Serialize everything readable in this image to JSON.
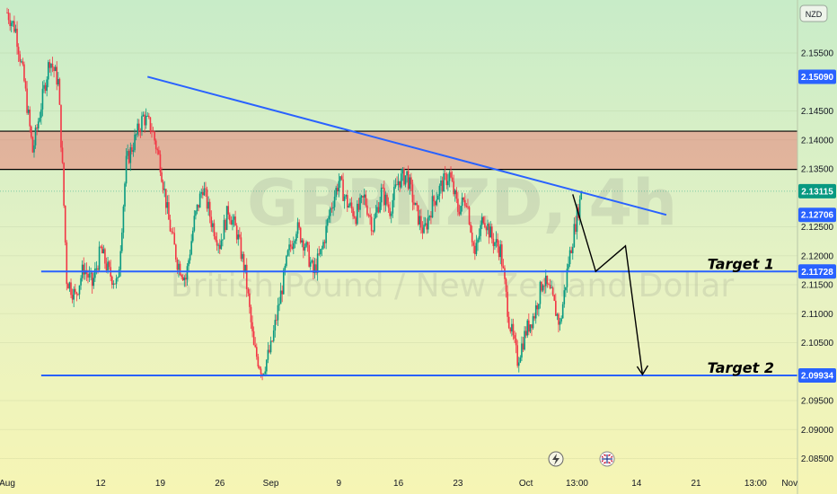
{
  "chart_data": {
    "type": "candlestick",
    "symbol_watermark": "GBPNZD, 4h",
    "description_watermark": "British Pound / New Zealand Dollar",
    "currency": "NZD",
    "price_ticks": [
      2.155,
      2.145,
      2.14,
      2.135,
      2.125,
      2.12,
      2.115,
      2.11,
      2.105,
      2.095,
      2.09,
      2.085
    ],
    "price_tick_labels": [
      "2.15500",
      "2.14500",
      "2.14000",
      "2.13500",
      "2.12500",
      "2.12000",
      "2.11500",
      "2.11000",
      "2.10500",
      "2.09500",
      "2.09000",
      "2.08500"
    ],
    "price_tags": [
      {
        "value": 2.1509,
        "label": "2.15090",
        "color": "#2962ff"
      },
      {
        "value": 2.13115,
        "label": "2.13115",
        "color": "#089981"
      },
      {
        "value": 2.12706,
        "label": "2.12706",
        "color": "#2962ff"
      },
      {
        "value": 2.11728,
        "label": "2.11728",
        "color": "#2962ff"
      },
      {
        "value": 2.09934,
        "label": "2.09934",
        "color": "#2962ff"
      }
    ],
    "date_labels": [
      {
        "label": "Aug",
        "day": 0
      },
      {
        "label": "12",
        "day": 11
      },
      {
        "label": "19",
        "day": 18
      },
      {
        "label": "26",
        "day": 25
      },
      {
        "label": "Sep",
        "day": 31
      },
      {
        "label": "9",
        "day": 39
      },
      {
        "label": "16",
        "day": 46
      },
      {
        "label": "23",
        "day": 53
      },
      {
        "label": "Oct",
        "day": 61
      },
      {
        "label": "13:00",
        "day": 67
      },
      {
        "label": "14",
        "day": 74
      },
      {
        "label": "21",
        "day": 81
      },
      {
        "label": "13:00",
        "day": 88
      },
      {
        "label": "Nov",
        "day": 92
      }
    ],
    "resistance_zone": {
      "top": 2.1415,
      "bottom": 2.1349
    },
    "trendline": {
      "start_day": 16.5,
      "start_price": 2.1509,
      "end_day": 77.5,
      "end_price": 2.12706
    },
    "projected_path": [
      {
        "day": 66.5,
        "price": 2.1306
      },
      {
        "day": 69.2,
        "price": 2.1173
      },
      {
        "day": 72.7,
        "price": 2.1217
      },
      {
        "day": 74.7,
        "price": 2.0995
      }
    ],
    "targets": [
      {
        "label": "Target 1",
        "price": 2.11728,
        "start_day": 4
      },
      {
        "label": "Target 2",
        "price": 2.09934,
        "start_day": 4
      }
    ],
    "last_price": 2.13115,
    "candle_path": [
      [
        0,
        2.162
      ],
      [
        1,
        2.159
      ],
      [
        2,
        2.15
      ],
      [
        3,
        2.138
      ],
      [
        4,
        2.146
      ],
      [
        5,
        2.154
      ],
      [
        6,
        2.15
      ],
      [
        6.5,
        2.135
      ],
      [
        7,
        2.116
      ],
      [
        8,
        2.113
      ],
      [
        9,
        2.118
      ],
      [
        10,
        2.115
      ],
      [
        11,
        2.121
      ],
      [
        12,
        2.117
      ],
      [
        13,
        2.115
      ],
      [
        14,
        2.136
      ],
      [
        15,
        2.14
      ],
      [
        16,
        2.144
      ],
      [
        17,
        2.142
      ],
      [
        18,
        2.136
      ],
      [
        19,
        2.126
      ],
      [
        20,
        2.119
      ],
      [
        21,
        2.116
      ],
      [
        22,
        2.126
      ],
      [
        23,
        2.132
      ],
      [
        24,
        2.126
      ],
      [
        25,
        2.122
      ],
      [
        26,
        2.128
      ],
      [
        27,
        2.124
      ],
      [
        28,
        2.117
      ],
      [
        29,
        2.104
      ],
      [
        30,
        2.1
      ],
      [
        31,
        2.104
      ],
      [
        32,
        2.112
      ],
      [
        33,
        2.12
      ],
      [
        34,
        2.125
      ],
      [
        35,
        2.122
      ],
      [
        36,
        2.117
      ],
      [
        37,
        2.121
      ],
      [
        38,
        2.128
      ],
      [
        39,
        2.133
      ],
      [
        40,
        2.129
      ],
      [
        41,
        2.127
      ],
      [
        42,
        2.13
      ],
      [
        43,
        2.125
      ],
      [
        44,
        2.131
      ],
      [
        45,
        2.128
      ],
      [
        46,
        2.133
      ],
      [
        47,
        2.134
      ],
      [
        48,
        2.128
      ],
      [
        49,
        2.124
      ],
      [
        50,
        2.129
      ],
      [
        51,
        2.132
      ],
      [
        52,
        2.134
      ],
      [
        53,
        2.128
      ],
      [
        54,
        2.13
      ],
      [
        55,
        2.12
      ],
      [
        56,
        2.127
      ],
      [
        57,
        2.123
      ],
      [
        58,
        2.121
      ],
      [
        59,
        2.109
      ],
      [
        60,
        2.102
      ],
      [
        61,
        2.107
      ],
      [
        62,
        2.11
      ],
      [
        63,
        2.116
      ],
      [
        64,
        2.113
      ],
      [
        65,
        2.108
      ],
      [
        66,
        2.119
      ],
      [
        67,
        2.127
      ],
      [
        67.6,
        2.131
      ]
    ]
  },
  "colors": {
    "up": "#089981",
    "down": "#f23645",
    "trend": "#2962ff",
    "zone": "rgba(242,54,69,0.32)"
  }
}
